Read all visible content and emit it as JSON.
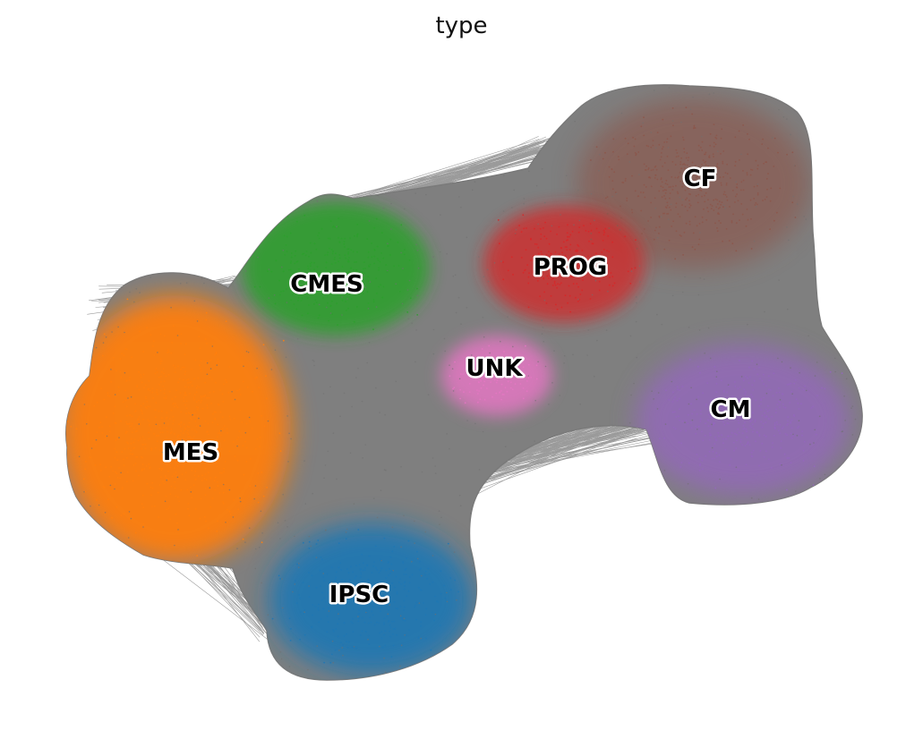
{
  "chart_data": {
    "type": "scatter",
    "title": "type",
    "xlabel": "",
    "ylabel": "",
    "grid": false,
    "axes_visible": false,
    "legend_location": "on data",
    "edge_color": "#808080",
    "clusters": [
      {
        "name": "CF",
        "color": "#8c564b"
      },
      {
        "name": "PROG",
        "color": "#d62728"
      },
      {
        "name": "CMES",
        "color": "#2ca02c"
      },
      {
        "name": "UNK",
        "color": "#e377c2"
      },
      {
        "name": "CM",
        "color": "#9467bd"
      },
      {
        "name": "MES",
        "color": "#ff7f0e"
      },
      {
        "name": "IPSC",
        "color": "#1f77b4"
      }
    ]
  }
}
